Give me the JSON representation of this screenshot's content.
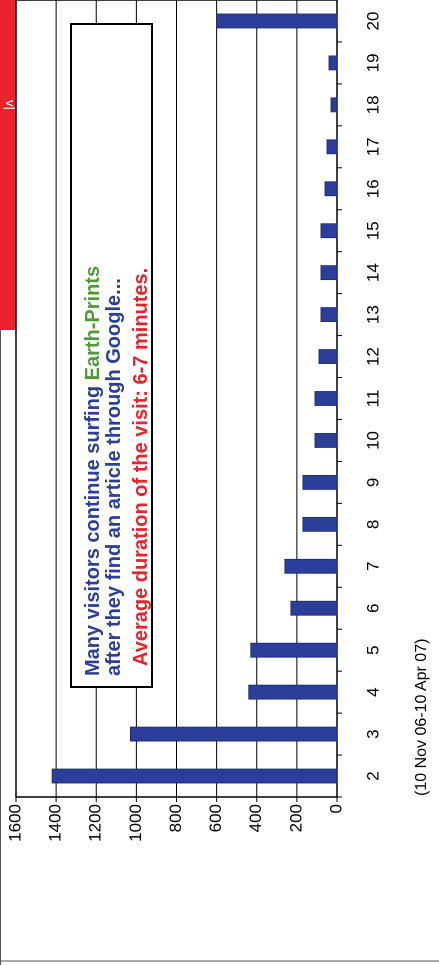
{
  "chart_data": {
    "type": "bar",
    "orientation": "rotated-90-clockwise",
    "categories": [
      "2",
      "3",
      "4",
      "5",
      "6",
      "7",
      "8",
      "9",
      "10",
      "11",
      "12",
      "13",
      "14",
      "15",
      "16",
      "17",
      "18",
      "19",
      "20"
    ],
    "values": [
      1420,
      1030,
      440,
      430,
      230,
      260,
      170,
      170,
      110,
      110,
      90,
      80,
      80,
      80,
      60,
      50,
      30,
      40,
      600
    ],
    "ylim": [
      0,
      1600
    ],
    "yticks": [
      0,
      200,
      400,
      600,
      800,
      1000,
      1200,
      1400,
      1600
    ],
    "grid": true,
    "xlabel": "(10 Nov 06-10 Apr 07)",
    "bar_color": "#2B3F9A",
    "annotation": {
      "line1_part1": "Many visitors continue surfing ",
      "line1_part2": "Earth-Prints",
      "line2": "after they find an article through Google...",
      "line3": "Average duration of the visit: 6-7 minutes.",
      "text_color": "#2B3F9A",
      "highlight_color": "#4E9A36",
      "accent_color": "#E8232A"
    },
    "banner_fragment": "v|"
  }
}
